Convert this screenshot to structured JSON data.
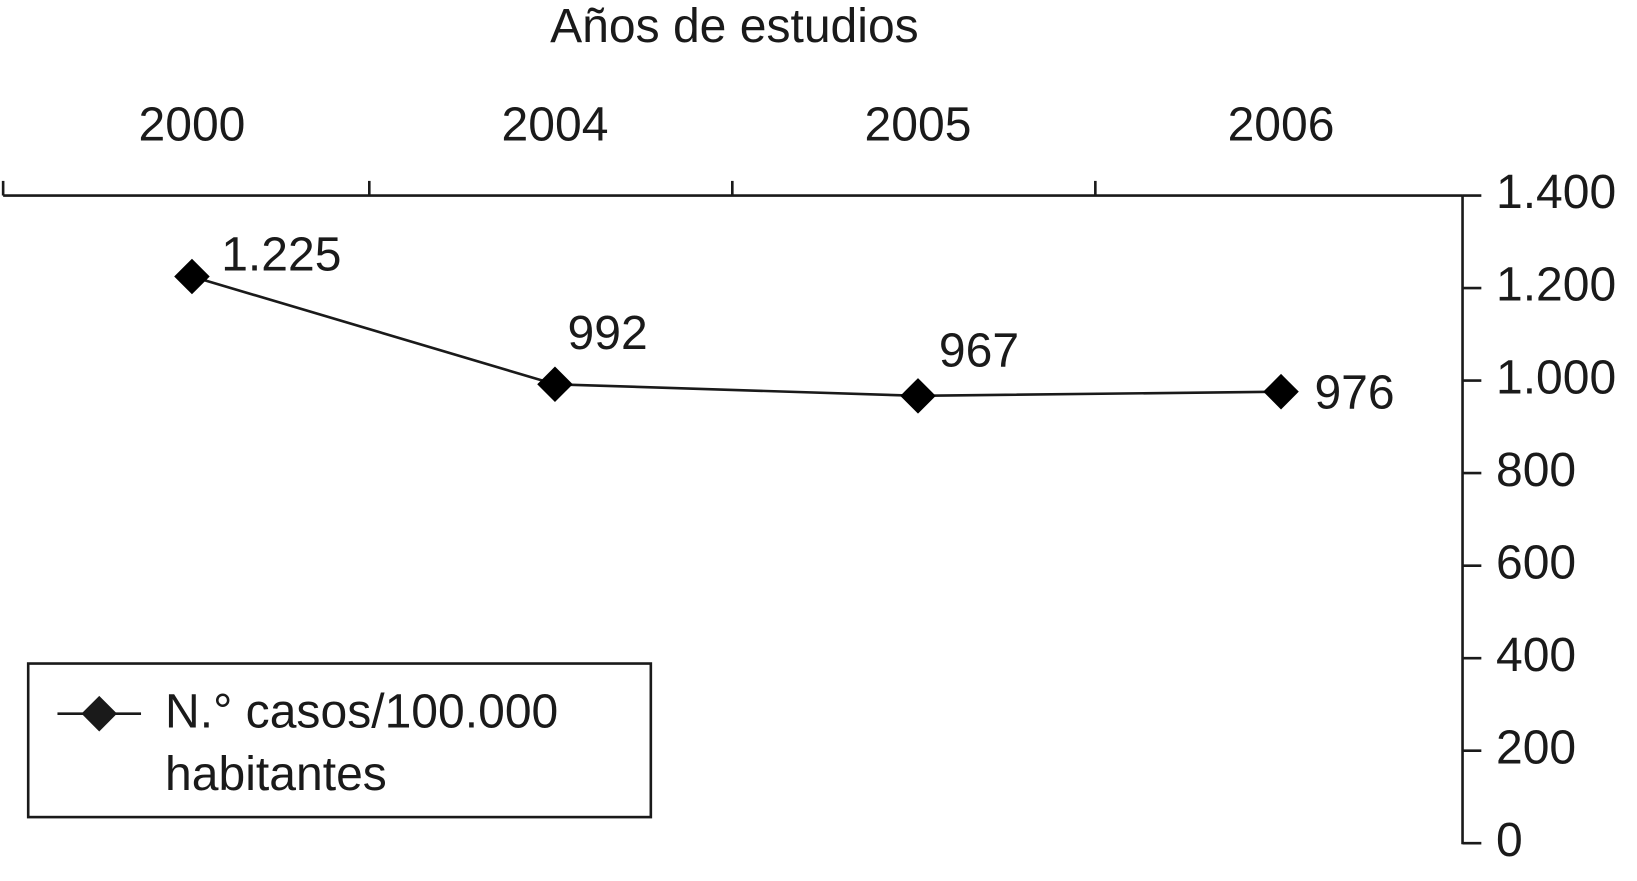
{
  "chart_data": {
    "type": "line",
    "title": "Años de estudios",
    "categories": [
      "2000",
      "2004",
      "2005",
      "2006"
    ],
    "series": [
      {
        "name": "N.° casos/100.000 habitantes",
        "color": "#000000",
        "values": [
          1225,
          992,
          967,
          976
        ],
        "value_labels": [
          "1.225",
          "992",
          "967",
          "976"
        ]
      }
    ],
    "ylim": [
      0,
      1400
    ],
    "yticks": [
      0,
      200,
      400,
      600,
      800,
      {
        "value": 1000,
        "label": "1.000"
      },
      {
        "value": 1200,
        "label": "1.200"
      },
      {
        "value": 1400,
        "label": "1.400"
      }
    ],
    "x_axis_position": "top",
    "y_axis_position": "right",
    "grid": false,
    "legend": "lower left"
  }
}
